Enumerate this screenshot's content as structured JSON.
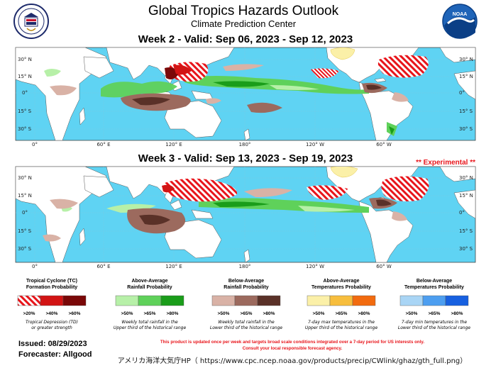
{
  "header": {
    "title": "Global Tropics Hazards Outlook",
    "subtitle": "Climate Prediction Center"
  },
  "week2": {
    "title": "Week 2 - Valid: Sep 06, 2023 - Sep 12, 2023"
  },
  "week3": {
    "title": "Week 3 - Valid: Sep 13, 2023 - Sep 19, 2023",
    "experimental": "** Experimental **"
  },
  "map_axes": {
    "lat_labels_left": [
      "30° N",
      "15° N",
      "0°",
      "15° S",
      "30° S"
    ],
    "lat_labels_right": [
      "30° N",
      "15° N",
      "0°",
      "15° S",
      "30° S"
    ],
    "lon_labels": [
      "0°",
      "60° E",
      "120° E",
      "180°",
      "120° W",
      "60° W"
    ]
  },
  "legend": [
    {
      "heading": [
        "Tropical Cyclone (TC)",
        "Formation Probability"
      ],
      "swatches": [
        ">20%",
        ">40%",
        ">60%"
      ],
      "colors": [
        "#ee2a2a",
        "#d21414",
        "#7a0808"
      ],
      "notes": [
        "Tropical Depression (TD)",
        "or greater strength"
      ]
    },
    {
      "heading": [
        "Above-Average",
        "Rainfall Probability"
      ],
      "swatches": [
        ">50%",
        ">65%",
        ">80%"
      ],
      "colors": [
        "#b7f0a8",
        "#5fd15a",
        "#1a9d1a"
      ],
      "notes": [
        "Weekly total rainfall in the",
        "Upper third of the historical range"
      ]
    },
    {
      "heading": [
        "Below-Average",
        "Rainfall Probability"
      ],
      "swatches": [
        ">50%",
        ">65%",
        ">80%"
      ],
      "colors": [
        "#d9b2a6",
        "#9c6a5e",
        "#5a3128"
      ],
      "notes": [
        "Weekly total rainfall in the",
        "Lower third of the historical range"
      ]
    },
    {
      "heading": [
        "Above-Average",
        "Temperatures Probability"
      ],
      "swatches": [
        ">50%",
        ">65%",
        ">80%"
      ],
      "colors": [
        "#fbf0a8",
        "#f7be3d",
        "#f26b0f"
      ],
      "notes": [
        "7-day max temperatures in the",
        "Upper third of the historical range"
      ]
    },
    {
      "heading": [
        "Below-Average",
        "Temperatures Probability"
      ],
      "swatches": [
        ">50%",
        ">65%",
        ">80%"
      ],
      "colors": [
        "#a9d5f5",
        "#4d9ef0",
        "#1760e0"
      ],
      "notes": [
        "7-day min temperatures in the",
        "Lower third of the historical range"
      ]
    }
  ],
  "footer": {
    "issued": "Issued: 08/29/2023",
    "forecaster": "Forecaster: Allgood",
    "note_line1": "This product is updated once per week and targets broad scale conditions integrated over a 7-day period for US interests only.",
    "note_line2": "Consult your local responsible forecast agency.",
    "caption": "アメリカ海洋大気庁HP（ https://www.cpc.ncep.noaa.gov/products/precip/CWlink/ghaz/gth_full.png）"
  },
  "colors": {
    "ocean": "#5fd3f3",
    "land": "#ffffff",
    "tc_hatch": "#e8151b",
    "above_rain": "#5fd15a",
    "below_rain": "#9c6a5e",
    "above_temp": "#fbf0a8",
    "accent_red": "#e8151b"
  },
  "logos": {
    "left": "department-of-commerce-seal",
    "right": "noaa-logo"
  }
}
